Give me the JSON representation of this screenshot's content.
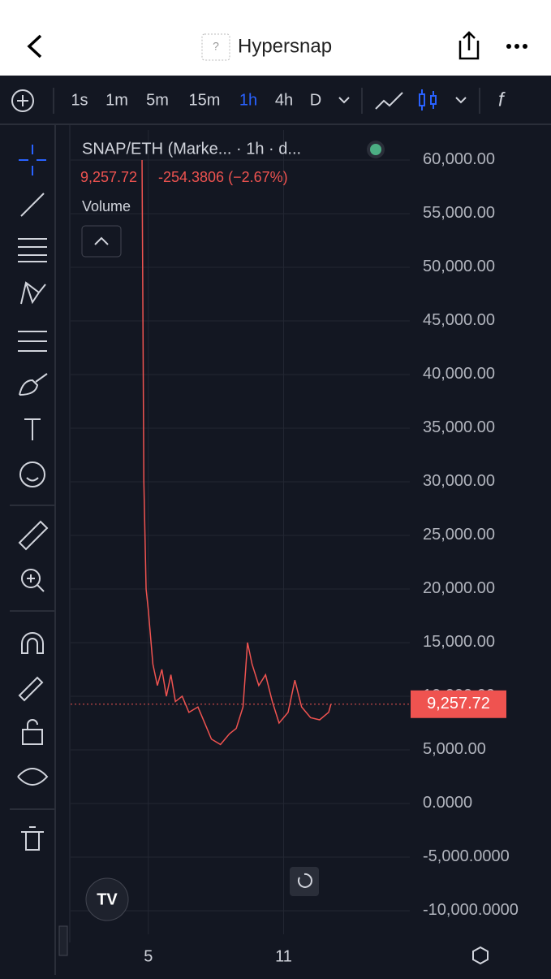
{
  "header": {
    "title": "Hypersnap",
    "icon": "?"
  },
  "toolbar": {
    "intervals": [
      "1s",
      "1m",
      "5m",
      "15m",
      "1h",
      "4h",
      "D"
    ],
    "active": "1h"
  },
  "legend": {
    "symbol": "SNAP/ETH (Marke... · 1h · d...",
    "price": "9,257.72",
    "change": "-254.3806 (−2.67%)",
    "volume": "Volume"
  },
  "chart_data": {
    "type": "line",
    "color": "#ef5350",
    "x": [
      4.72,
      4.8,
      4.9,
      5.0,
      5.2,
      5.4,
      5.6,
      5.8,
      6.0,
      6.2,
      6.5,
      6.8,
      7.2,
      7.5,
      7.8,
      8.2,
      8.6,
      8.9,
      9.2,
      9.4,
      9.6,
      9.9,
      10.2,
      10.5,
      10.8,
      11.2,
      11.5,
      11.8,
      12.2,
      12.6,
      13.0,
      13.1
    ],
    "values": [
      60000,
      30000,
      20000,
      18000,
      13000,
      11000,
      12500,
      10000,
      12000,
      9500,
      10000,
      8500,
      9000,
      7500,
      6000,
      5500,
      6500,
      7000,
      9000,
      15000,
      13000,
      11000,
      12000,
      9500,
      7500,
      8500,
      11500,
      9000,
      8000,
      7800,
      8500,
      9257.72
    ],
    "last_price": 9257.72,
    "xlim": [
      1.55,
      16.6
    ],
    "xticks": [
      5,
      11
    ],
    "ylim": [
      -12200,
      62800
    ],
    "yticks": [
      {
        "value": 60000,
        "label": "60,000.00"
      },
      {
        "value": 55000,
        "label": "55,000.00"
      },
      {
        "value": 50000,
        "label": "50,000.00"
      },
      {
        "value": 45000,
        "label": "45,000.00"
      },
      {
        "value": 40000,
        "label": "40,000.00"
      },
      {
        "value": 35000,
        "label": "35,000.00"
      },
      {
        "value": 30000,
        "label": "30,000.00"
      },
      {
        "value": 25000,
        "label": "25,000.00"
      },
      {
        "value": 20000,
        "label": "20,000.00"
      },
      {
        "value": 15000,
        "label": "15,000.00"
      },
      {
        "value": 10000,
        "label": "10,000.00"
      },
      {
        "value": 5000,
        "label": "5,000.00"
      },
      {
        "value": 0,
        "label": "0.0000"
      },
      {
        "value": -5000,
        "label": "-5,000.0000"
      },
      {
        "value": -10000,
        "label": "-10,000.0000"
      }
    ],
    "grid": true
  }
}
